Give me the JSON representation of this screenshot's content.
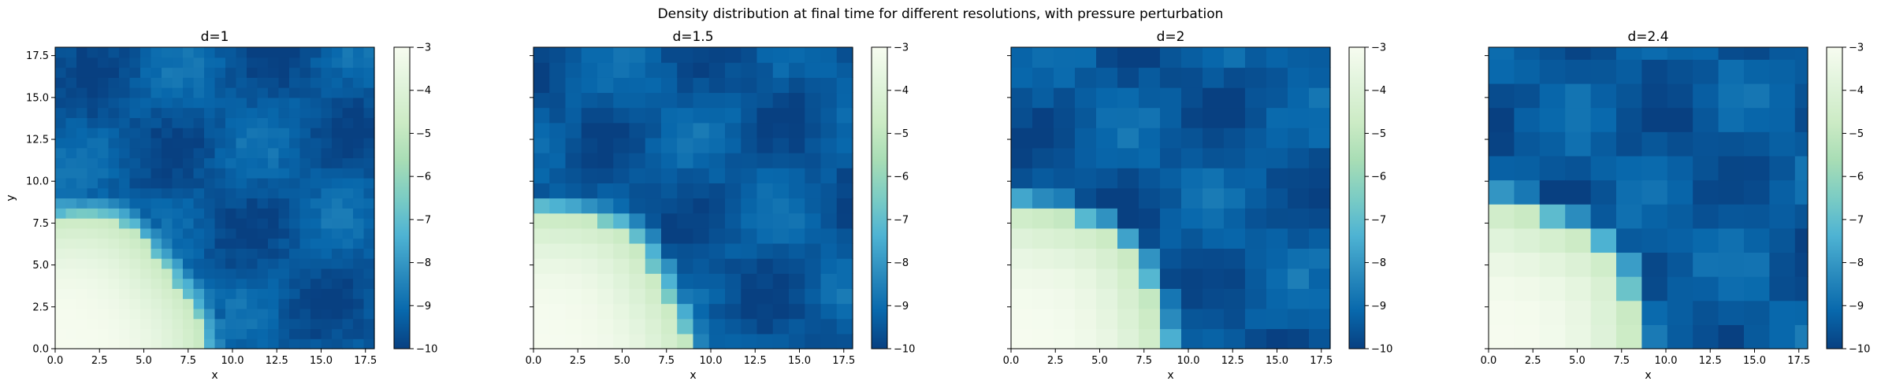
{
  "figure": {
    "suptitle": "Density distribution at final time for different resolutions, with pressure perturbation"
  },
  "colormap": {
    "name": "GnBu_r",
    "stops": [
      "#084081",
      "#0868ac",
      "#2b8cbe",
      "#4eb3d3",
      "#7bccc4",
      "#a8ddb5",
      "#ccebc5",
      "#e0f3db",
      "#f7fcf0"
    ]
  },
  "chart_data": [
    {
      "type": "heatmap",
      "title": "d=1",
      "xlabel": "x",
      "ylabel": "y",
      "cell_size": 0.6,
      "xlim": [
        0,
        18
      ],
      "ylim": [
        0,
        18
      ],
      "xticks": [
        "0.0",
        "2.5",
        "5.0",
        "7.5",
        "10.0",
        "12.5",
        "15.0",
        "17.5"
      ],
      "yticks": [
        "0.0",
        "2.5",
        "5.0",
        "7.5",
        "10.0",
        "12.5",
        "15.0",
        "17.5"
      ],
      "shock_radius": 8.1,
      "colorbar": {
        "min": -10,
        "max": -3,
        "ticks": [
          "−3",
          "−4",
          "−5",
          "−6",
          "−7",
          "−8",
          "−9",
          "−10"
        ]
      }
    },
    {
      "type": "heatmap",
      "title": "d=1.5",
      "xlabel": "x",
      "ylabel": "",
      "cell_size": 0.9,
      "xlim": [
        0,
        18
      ],
      "ylim": [
        0,
        18
      ],
      "xticks": [
        "0.0",
        "2.5",
        "5.0",
        "7.5",
        "10.0",
        "12.5",
        "15.0",
        "17.5"
      ],
      "yticks": [],
      "shock_radius": 8.4,
      "colorbar": {
        "min": -10,
        "max": -3,
        "ticks": [
          "−3",
          "−4",
          "−5",
          "−6",
          "−7",
          "−8",
          "−9",
          "−10"
        ]
      }
    },
    {
      "type": "heatmap",
      "title": "d=2",
      "xlabel": "x",
      "ylabel": "",
      "cell_size": 1.2,
      "xlim": [
        0,
        18
      ],
      "ylim": [
        0,
        18
      ],
      "xticks": [
        "0.0",
        "2.5",
        "5.0",
        "7.5",
        "10.0",
        "12.5",
        "15.0",
        "17.5"
      ],
      "yticks": [],
      "shock_radius": 8.6,
      "colorbar": {
        "min": -10,
        "max": -3,
        "ticks": [
          "−3",
          "−4",
          "−5",
          "−6",
          "−7",
          "−8",
          "−9",
          "−10"
        ]
      }
    },
    {
      "type": "heatmap",
      "title": "d=2.4",
      "xlabel": "x",
      "ylabel": "",
      "cell_size": 1.44,
      "xlim": [
        0,
        18
      ],
      "ylim": [
        0,
        18
      ],
      "xticks": [
        "0.0",
        "2.5",
        "5.0",
        "7.5",
        "10.0",
        "12.5",
        "15.0",
        "17.5"
      ],
      "yticks": [],
      "shock_radius": 8.6,
      "colorbar": {
        "min": -10,
        "max": -3,
        "ticks": [
          "−3",
          "−4",
          "−5",
          "−6",
          "−7",
          "−8",
          "−9",
          "−10"
        ]
      }
    }
  ]
}
